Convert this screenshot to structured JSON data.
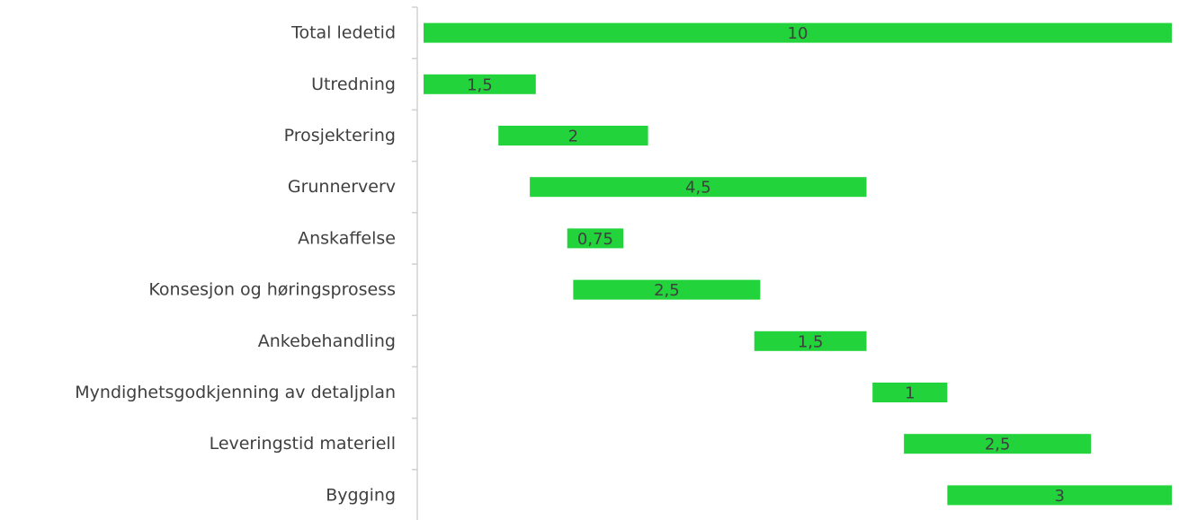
{
  "chart_data": {
    "type": "bar",
    "orientation": "horizontal-floating",
    "categories": [
      "Total ledetid",
      "Utredning",
      "Prosjektering",
      "Grunnerverv",
      "Anskaffelse",
      "Konsesjon og høringsprosess",
      "Ankebehandling",
      "Myndighetsgodkjenning av detaljplan",
      "Leveringstid materiell",
      "Bygging"
    ],
    "start": [
      0,
      0,
      1,
      1.42,
      1.92,
      2,
      4.42,
      6,
      6.42,
      7
    ],
    "values": [
      10,
      1.5,
      2,
      4.5,
      0.75,
      2.5,
      1.5,
      1,
      2.5,
      3
    ],
    "value_labels": [
      "10",
      "1,5",
      "2",
      "4,5",
      "0,75",
      "2,5",
      "1,5",
      "1",
      "2,5",
      "3"
    ],
    "xlim": [
      0,
      10
    ],
    "grid": false,
    "legend": "none",
    "bar_color": "#22d33b"
  }
}
